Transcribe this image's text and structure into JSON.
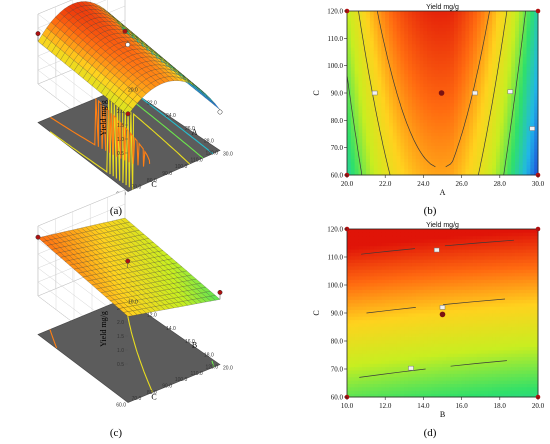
{
  "panel_labels": [
    "(a)",
    "(b)",
    "(c)",
    "(d)"
  ],
  "colors": {
    "surface_ramp": [
      "#1c3dd8",
      "#21b6e8",
      "#2fe06a",
      "#c8ee20",
      "#ffd21e",
      "#ff6a10",
      "#e01408"
    ],
    "floor": "#5c5c5c",
    "design_point_top": "#b01010",
    "design_point_bottom": "#ffffff",
    "center_point": "#7a1212",
    "contour_line": "#3a3a3a"
  },
  "chart_data": [
    {
      "panel": "(a)",
      "type": "surface3d",
      "title": "",
      "zlabel": "Yield mg/g",
      "x_axis": {
        "label": "A",
        "ticks": [
          "20.0",
          "22.0",
          "24.0",
          "26.0",
          "28.0",
          "30.0"
        ],
        "range": [
          20,
          30
        ]
      },
      "y_axis": {
        "label": "C",
        "ticks": [
          "60.0",
          "70.0",
          "80.0",
          "90.0",
          "100.0",
          "110.0",
          "120.0"
        ],
        "range": [
          60,
          120
        ]
      },
      "z_axis": {
        "ticks": [
          "0.5",
          "1.0",
          "1.5",
          "2.0",
          "2.5",
          "3.0"
        ],
        "range": [
          0.5,
          3.0
        ]
      },
      "surface_corners": {
        "A20_C60": 1.85,
        "A20_C120": 2.02,
        "A25_C120": 2.8,
        "A30_C60": 0.58,
        "A30_C120": 1.05
      },
      "design_points": [
        {
          "A": 20,
          "C": 60,
          "yield": 1.9
        },
        {
          "A": 20,
          "C": 120,
          "yield": 2.3
        },
        {
          "A": 30,
          "C": 60,
          "yield": 0.5
        },
        {
          "A": 30,
          "C": 120,
          "yield": 1.1
        },
        {
          "A": 25,
          "C": 90,
          "yield": 2.45
        }
      ]
    },
    {
      "panel": "(b)",
      "type": "contour",
      "title": "Yield mg/g",
      "xlabel": "A",
      "ylabel": "C",
      "xlim": [
        20.0,
        30.0
      ],
      "ylim": [
        60.0,
        120.0
      ],
      "xticks": [
        "20.0",
        "22.0",
        "24.0",
        "26.0",
        "28.0",
        "30.0"
      ],
      "yticks": [
        "60.0",
        "70.0",
        "80.0",
        "90.0",
        "100.0",
        "110.0",
        "120.0"
      ],
      "center_point": {
        "x": 24.95,
        "y": 90.0
      },
      "contour_labels": [
        {
          "x": 21.45,
          "y": 90.0
        },
        {
          "x": 26.7,
          "y": 90.0
        },
        {
          "x": 28.55,
          "y": 90.5
        },
        {
          "x": 29.7,
          "y": 77.0
        }
      ]
    },
    {
      "panel": "(c)",
      "type": "surface3d",
      "title": "",
      "zlabel": "Yield mg/g",
      "x_axis": {
        "label": "B",
        "ticks": [
          "10.0",
          "12.0",
          "14.0",
          "16.0",
          "18.0",
          "20.0"
        ],
        "range": [
          10,
          20
        ]
      },
      "y_axis": {
        "label": "C",
        "ticks": [
          "60.0",
          "70.0",
          "80.0",
          "90.0",
          "100.0",
          "110.0",
          "120.0"
        ],
        "range": [
          60,
          120
        ]
      },
      "z_axis": {
        "ticks": [
          "0.5",
          "1.0",
          "1.5",
          "2.0",
          "2.5",
          "3.0"
        ],
        "range": [
          0.5,
          3.0
        ]
      },
      "surface_corners": {
        "B10_C60": 2.2,
        "B10_C120": 2.58,
        "B20_C60": 1.45,
        "B20_C120": 2.0
      },
      "design_points": [
        {
          "B": 10,
          "C": 120,
          "yield": 2.6
        },
        {
          "B": 15,
          "C": 90,
          "yield": 2.3
        },
        {
          "B": 20,
          "C": 60,
          "yield": 1.7
        }
      ]
    },
    {
      "panel": "(d)",
      "type": "contour",
      "title": "Yield mg/g",
      "xlabel": "B",
      "ylabel": "C",
      "xlim": [
        10.0,
        20.0
      ],
      "ylim": [
        60.0,
        120.0
      ],
      "xticks": [
        "10.0",
        "12.0",
        "14.0",
        "16.0",
        "18.0",
        "20.0"
      ],
      "yticks": [
        "60.0",
        "70.0",
        "80.0",
        "90.0",
        "100.0",
        "110.0",
        "120.0"
      ],
      "center_point": {
        "x": 15.0,
        "y": 89.5
      },
      "contour_labels": [
        {
          "x": 14.7,
          "y": 112.5
        },
        {
          "x": 15.0,
          "y": 92.0
        },
        {
          "x": 13.35,
          "y": 70.3
        }
      ]
    }
  ]
}
